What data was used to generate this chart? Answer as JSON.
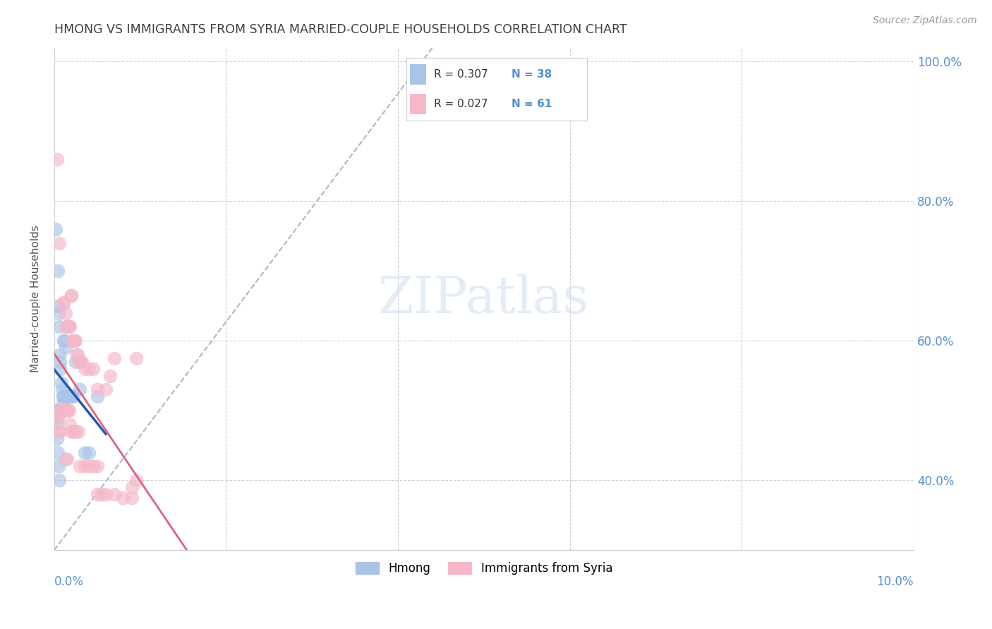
{
  "title": "HMONG VS IMMIGRANTS FROM SYRIA MARRIED-COUPLE HOUSEHOLDS CORRELATION CHART",
  "source": "Source: ZipAtlas.com",
  "ylabel": "Married-couple Households",
  "hmong_R": "0.307",
  "hmong_N": "38",
  "syria_R": "0.027",
  "syria_N": "61",
  "hmong_color": "#aac4e8",
  "syria_color": "#f4b8c8",
  "hmong_line_color": "#2255bb",
  "syria_line_color": "#e06080",
  "diagonal_color": "#a0a8c0",
  "background_color": "#ffffff",
  "grid_color": "#d0d0d8",
  "title_color": "#404040",
  "axis_label_color": "#5590d0",
  "source_color": "#999999",
  "hmong_x": [
    0.0002,
    0.0004,
    0.0004,
    0.0005,
    0.0006,
    0.0006,
    0.0007,
    0.0007,
    0.0008,
    0.0009,
    0.001,
    0.001,
    0.001,
    0.0011,
    0.0012,
    0.0013,
    0.0013,
    0.0015,
    0.0015,
    0.0017,
    0.0018,
    0.002,
    0.002,
    0.0022,
    0.0025,
    0.003,
    0.003,
    0.0035,
    0.004,
    0.005,
    0.0002,
    0.0003,
    0.0003,
    0.0003,
    0.0004,
    0.0005,
    0.0006,
    0.0014
  ],
  "hmong_y": [
    0.76,
    0.7,
    0.65,
    0.64,
    0.62,
    0.58,
    0.57,
    0.56,
    0.54,
    0.53,
    0.52,
    0.52,
    0.51,
    0.6,
    0.6,
    0.59,
    0.52,
    0.52,
    0.52,
    0.52,
    0.52,
    0.52,
    0.52,
    0.52,
    0.57,
    0.53,
    0.57,
    0.44,
    0.44,
    0.52,
    0.5,
    0.5,
    0.48,
    0.46,
    0.44,
    0.42,
    0.4,
    0.52
  ],
  "syria_x": [
    0.0003,
    0.0006,
    0.001,
    0.0012,
    0.0013,
    0.0013,
    0.0015,
    0.0016,
    0.0017,
    0.0018,
    0.002,
    0.002,
    0.0021,
    0.0022,
    0.0023,
    0.0025,
    0.0026,
    0.0027,
    0.003,
    0.003,
    0.0032,
    0.0035,
    0.004,
    0.0045,
    0.005,
    0.005,
    0.006,
    0.0065,
    0.007,
    0.009,
    0.0095,
    0.0003,
    0.0003,
    0.0005,
    0.0005,
    0.0007,
    0.0008,
    0.001,
    0.0012,
    0.0012,
    0.0013,
    0.0015,
    0.0015,
    0.0016,
    0.0017,
    0.0018,
    0.002,
    0.0022,
    0.0025,
    0.0028,
    0.003,
    0.0035,
    0.004,
    0.0045,
    0.005,
    0.0055,
    0.006,
    0.007,
    0.008,
    0.009,
    0.0095
  ],
  "syria_y": [
    0.86,
    0.74,
    0.655,
    0.655,
    0.64,
    0.62,
    0.62,
    0.62,
    0.62,
    0.62,
    0.665,
    0.665,
    0.6,
    0.6,
    0.6,
    0.6,
    0.58,
    0.58,
    0.57,
    0.57,
    0.57,
    0.56,
    0.56,
    0.56,
    0.42,
    0.53,
    0.53,
    0.55,
    0.575,
    0.39,
    0.4,
    0.5,
    0.49,
    0.49,
    0.47,
    0.47,
    0.5,
    0.5,
    0.5,
    0.5,
    0.43,
    0.43,
    0.5,
    0.5,
    0.5,
    0.48,
    0.47,
    0.47,
    0.47,
    0.47,
    0.42,
    0.42,
    0.42,
    0.42,
    0.38,
    0.38,
    0.38,
    0.38,
    0.375,
    0.375,
    0.575
  ],
  "xlim": [
    0.0,
    0.1
  ],
  "ylim": [
    0.3,
    1.02
  ],
  "yticks": [
    0.4,
    0.6,
    0.8,
    1.0
  ],
  "xticks": [
    0.0,
    0.02,
    0.04,
    0.06,
    0.08,
    0.1
  ]
}
